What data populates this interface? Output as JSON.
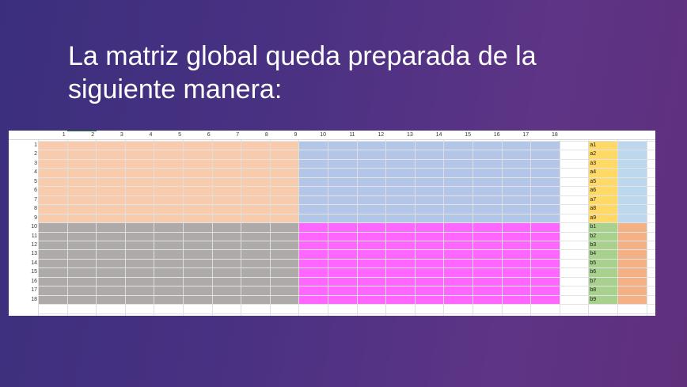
{
  "slide": {
    "title": "La matriz global queda preparada de la siguiente manera:"
  },
  "sheet": {
    "column_numbers": [
      "1",
      "2",
      "3",
      "4",
      "5",
      "6",
      "7",
      "8",
      "9",
      "10",
      "11",
      "12",
      "13",
      "14",
      "15",
      "16",
      "17",
      "18"
    ],
    "row_numbers": [
      "1",
      "2",
      "3",
      "4",
      "5",
      "6",
      "7",
      "8",
      "9",
      "10",
      "11",
      "12",
      "13",
      "14",
      "15",
      "16",
      "17",
      "18"
    ],
    "vector_labels": [
      "a1",
      "a2",
      "a3",
      "a4",
      "a5",
      "a6",
      "a7",
      "a8",
      "a9",
      "b1",
      "b2",
      "b3",
      "b4",
      "b5",
      "b6",
      "b7",
      "b8",
      "b9"
    ],
    "colors": {
      "block_a": "#f8cbad",
      "block_b": "#b4c6e7",
      "block_c": "#aeaaaa",
      "block_d": "#ff66ff",
      "vec_a": "#ffd966",
      "vec_b": "#a9d18e",
      "res_a": "#bdd7ee",
      "res_b": "#f4b183"
    }
  }
}
